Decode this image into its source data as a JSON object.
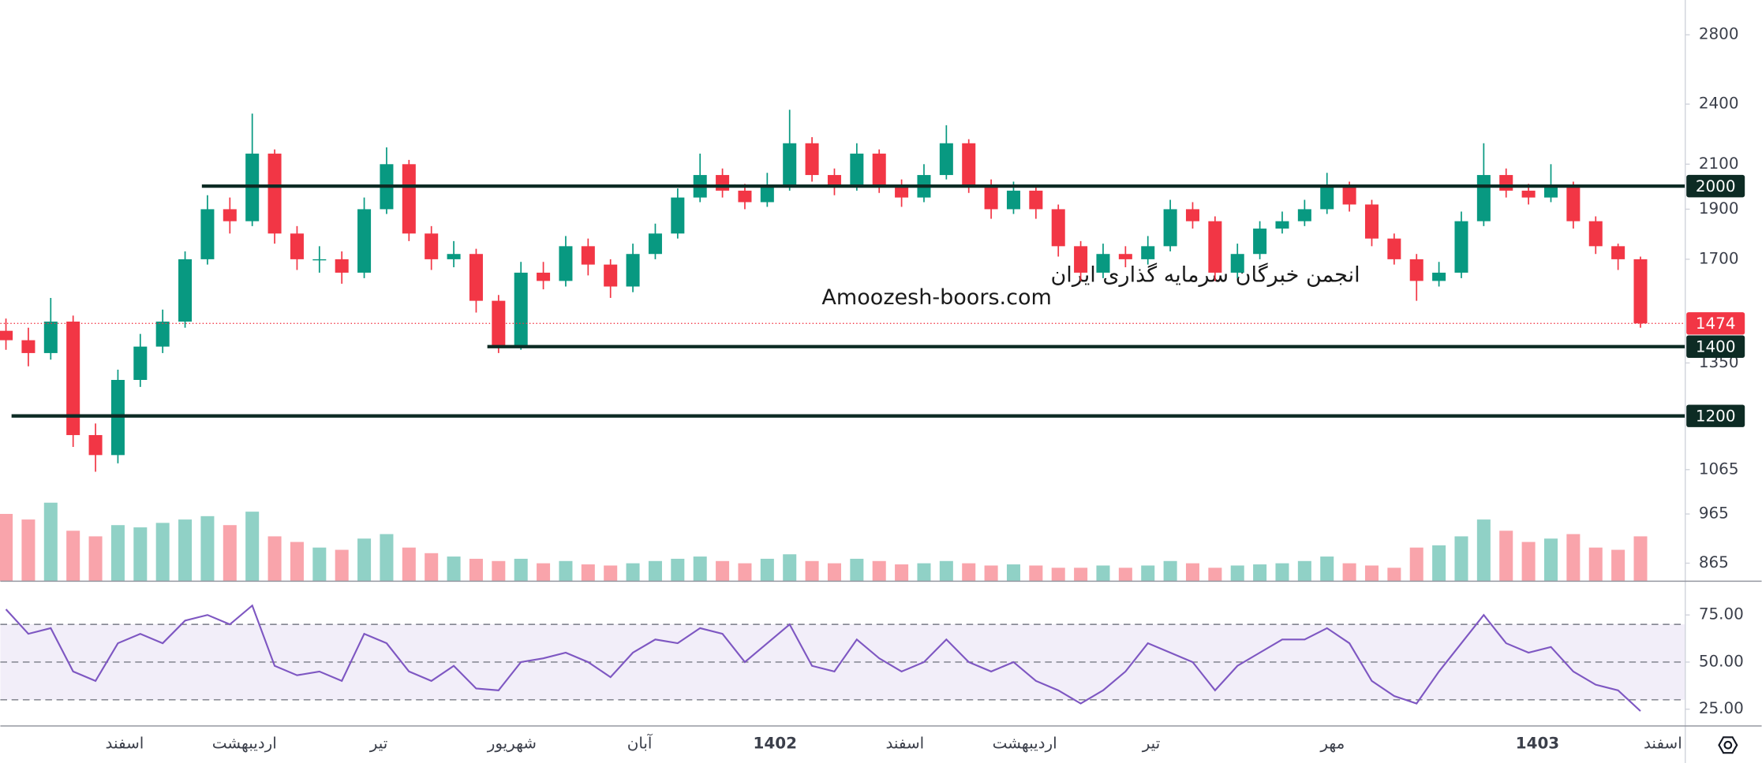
{
  "chart_data": [
    {
      "type": "candlestick",
      "x": [
        0,
        1,
        2,
        3,
        4,
        5,
        6,
        7,
        8,
        9,
        10,
        11,
        12,
        13,
        14,
        15,
        16,
        17,
        18,
        19,
        20,
        21,
        22,
        23,
        24,
        25,
        26,
        27,
        28,
        29,
        30,
        31,
        32,
        33,
        34,
        35,
        36,
        37,
        38,
        39,
        40,
        41,
        42,
        43,
        44,
        45,
        46,
        47,
        48,
        49,
        50,
        51,
        52,
        53,
        54,
        55,
        56,
        57,
        58,
        59,
        60,
        61,
        62,
        63,
        64,
        65,
        66,
        67,
        68,
        69,
        70,
        71,
        72,
        73
      ],
      "open": [
        1450,
        1420,
        1380,
        1480,
        1150,
        1100,
        1300,
        1400,
        1480,
        1700,
        1900,
        1850,
        2150,
        1800,
        1700,
        1700,
        1650,
        1900,
        2100,
        1800,
        1700,
        1720,
        1550,
        1400,
        1650,
        1620,
        1750,
        1680,
        1600,
        1720,
        1800,
        1950,
        2050,
        1980,
        1930,
        2000,
        2200,
        2050,
        2000,
        2150,
        2000,
        1950,
        2050,
        2200,
        2000,
        1900,
        1980,
        1900,
        1750,
        1650,
        1720,
        1700,
        1750,
        1900,
        1850,
        1650,
        1720,
        1820,
        1850,
        1900,
        2000,
        1920,
        1780,
        1700,
        1620,
        1650,
        1850,
        2050,
        1980,
        1950,
        2000,
        1850,
        1750,
        1700
      ],
      "high": [
        1490,
        1460,
        1560,
        1500,
        1180,
        1330,
        1440,
        1520,
        1730,
        1960,
        1950,
        2350,
        2170,
        1830,
        1750,
        1730,
        1950,
        2180,
        2120,
        1830,
        1770,
        1740,
        1570,
        1690,
        1690,
        1790,
        1780,
        1700,
        1760,
        1840,
        1990,
        2150,
        2080,
        2010,
        2060,
        2370,
        2230,
        2080,
        2200,
        2170,
        2030,
        2100,
        2290,
        2220,
        2030,
        2020,
        2000,
        1920,
        1770,
        1760,
        1750,
        1790,
        1940,
        1930,
        1870,
        1760,
        1850,
        1890,
        1940,
        2060,
        2020,
        1940,
        1800,
        1720,
        1690,
        1890,
        2200,
        2080,
        2010,
        2100,
        2020,
        1870,
        1760,
        1710
      ],
      "low": [
        1390,
        1340,
        1360,
        1120,
        1060,
        1080,
        1280,
        1380,
        1460,
        1680,
        1800,
        1830,
        1760,
        1660,
        1650,
        1610,
        1630,
        1880,
        1770,
        1660,
        1670,
        1510,
        1380,
        1390,
        1590,
        1600,
        1640,
        1560,
        1580,
        1700,
        1780,
        1930,
        1950,
        1900,
        1910,
        1980,
        2020,
        1960,
        1980,
        1970,
        1910,
        1930,
        2030,
        1970,
        1860,
        1880,
        1860,
        1710,
        1620,
        1630,
        1670,
        1680,
        1730,
        1820,
        1620,
        1630,
        1700,
        1800,
        1830,
        1880,
        1890,
        1750,
        1680,
        1550,
        1600,
        1630,
        1830,
        1950,
        1920,
        1930,
        1820,
        1720,
        1660,
        1460
      ],
      "close": [
        1420,
        1380,
        1480,
        1150,
        1100,
        1300,
        1400,
        1480,
        1700,
        1900,
        1850,
        2150,
        1800,
        1700,
        1700,
        1650,
        1900,
        2100,
        1800,
        1700,
        1720,
        1550,
        1400,
        1650,
        1620,
        1750,
        1680,
        1600,
        1720,
        1800,
        1950,
        2050,
        1980,
        1930,
        2000,
        2200,
        2050,
        2000,
        2150,
        2000,
        1950,
        2050,
        2200,
        2000,
        1900,
        1980,
        1900,
        1750,
        1650,
        1720,
        1700,
        1750,
        1900,
        1850,
        1650,
        1720,
        1820,
        1850,
        1900,
        2000,
        1920,
        1780,
        1700,
        1620,
        1650,
        1850,
        2050,
        1980,
        1950,
        2000,
        1850,
        1750,
        1700,
        1474
      ],
      "volume": [
        60,
        55,
        70,
        45,
        40,
        50,
        48,
        52,
        55,
        58,
        50,
        62,
        40,
        35,
        30,
        28,
        38,
        42,
        30,
        25,
        22,
        20,
        18,
        20,
        16,
        18,
        15,
        14,
        16,
        18,
        20,
        22,
        18,
        16,
        20,
        24,
        18,
        16,
        20,
        18,
        15,
        16,
        18,
        16,
        14,
        15,
        14,
        12,
        12,
        14,
        12,
        14,
        18,
        16,
        12,
        14,
        15,
        16,
        18,
        22,
        16,
        14,
        12,
        30,
        32,
        40,
        55,
        45,
        35,
        38,
        42,
        30,
        28,
        40
      ],
      "up_color": "#089981",
      "down_color": "#f23645",
      "xlim": [
        -0.25,
        75
      ],
      "ylim": [
        831,
        3025
      ],
      "log_scale": true,
      "yticks": [
        865,
        965,
        1065,
        1350,
        1700,
        1900,
        2100,
        2400,
        2800
      ],
      "xticks": [
        {
          "value": 5.3,
          "label": "اسفند"
        },
        {
          "value": 10.65,
          "label": "اردیبهشت"
        },
        {
          "value": 16.65,
          "label": "تیر"
        },
        {
          "value": 22.6,
          "label": "شهریور"
        },
        {
          "value": 28.3,
          "label": "آبان"
        },
        {
          "value": 34.35,
          "label": "1402"
        },
        {
          "value": 40.15,
          "label": "اسفند"
        },
        {
          "value": 45.5,
          "label": "اردیبهشت"
        },
        {
          "value": 51.15,
          "label": "تیر"
        },
        {
          "value": 59.25,
          "label": "مهر"
        },
        {
          "value": 68.4,
          "label": "1403"
        },
        {
          "value": 74,
          "label": "اسفند"
        }
      ],
      "levels": [
        2000,
        1400,
        1200
      ],
      "level_starts": [
        8.75,
        21.5,
        0.25
      ],
      "level_color": "#0d2b24",
      "last_price": 1474,
      "last_color": "#f23645",
      "watermark": [
        "انجمن خبرگان سرمایه گذاری ایران",
        "Amoozesh-boors.com"
      ]
    },
    {
      "type": "line",
      "values": [
        78,
        65,
        68,
        45,
        40,
        60,
        65,
        60,
        72,
        75,
        70,
        80,
        48,
        43,
        45,
        40,
        65,
        60,
        45,
        40,
        48,
        36,
        35,
        50,
        52,
        55,
        50,
        42,
        55,
        62,
        60,
        68,
        65,
        50,
        60,
        70,
        48,
        45,
        62,
        52,
        45,
        50,
        62,
        50,
        45,
        50,
        40,
        35,
        28,
        35,
        45,
        60,
        55,
        50,
        35,
        48,
        55,
        62,
        62,
        68,
        60,
        40,
        32,
        28,
        45,
        60,
        75,
        60,
        55,
        58,
        45,
        38,
        35,
        24
      ],
      "color": "#7e57c2",
      "ylim": [
        16.1,
        92.9
      ],
      "yticks": [
        {
          "value": 75,
          "label": "75.00"
        },
        {
          "value": 50,
          "label": "50.00"
        },
        {
          "value": 25,
          "label": "25.00"
        }
      ],
      "band": [
        30,
        70
      ],
      "guides": [
        70,
        50,
        30
      ]
    }
  ]
}
